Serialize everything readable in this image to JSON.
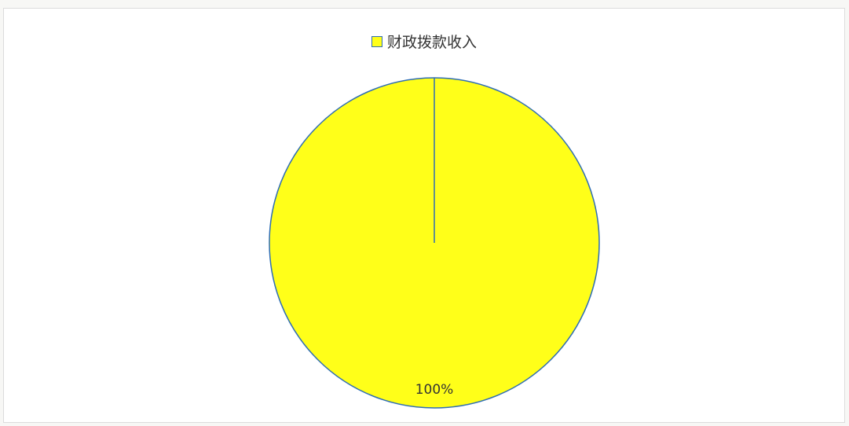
{
  "chart_data": {
    "type": "pie",
    "categories": [
      "财政拨款收入"
    ],
    "values": [
      100
    ],
    "data_labels": [
      "100%"
    ],
    "legend_position": "top",
    "colors": {
      "slice": "#ffff19",
      "outline": "#2e6db4"
    }
  }
}
